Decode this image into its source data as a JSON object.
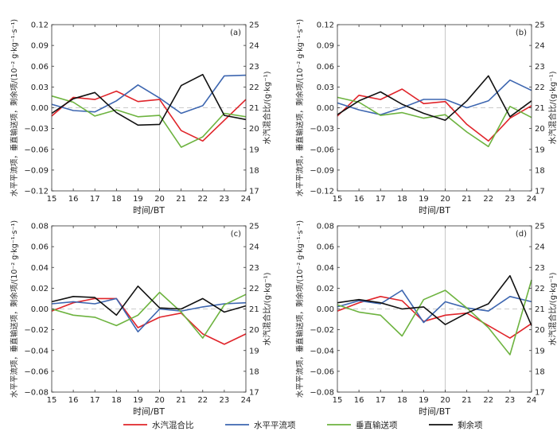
{
  "colors": {
    "mixing": "#e0242a",
    "horizontal": "#3d66b0",
    "vertical": "#6db33f",
    "residual": "#111111"
  },
  "legend": {
    "items": [
      {
        "key": "mixing",
        "label": "水汽混合比"
      },
      {
        "key": "horizontal",
        "label": "水平平流项"
      },
      {
        "key": "vertical",
        "label": "垂直输送项"
      },
      {
        "key": "residual",
        "label": "剩余项"
      }
    ]
  },
  "chart_data": [
    {
      "type": "line",
      "panel_label": "(a)",
      "x": [
        15,
        16,
        17,
        18,
        19,
        20,
        21,
        22,
        23,
        24
      ],
      "xlabel": "时间/BT",
      "ylabel_left": "水平平流项，垂直输送项，剩余项/(10⁻² g·kg⁻¹·s⁻¹)",
      "ylabel_right": "水汽混合比/(g·kg⁻¹)",
      "ylim_left": [
        -0.12,
        0.12
      ],
      "yticks_left": [
        "0.12",
        "0.09",
        "0.06",
        "0.03",
        "0.00",
        "−0.03",
        "−0.06",
        "−0.09",
        "−0.12"
      ],
      "ylim_right": [
        17,
        25
      ],
      "yticks_right": [
        "25",
        "24",
        "23",
        "22",
        "21",
        "20",
        "19",
        "18",
        "17"
      ],
      "series": [
        {
          "key": "mixing",
          "axis": "right",
          "values": [
            20.6,
            21.5,
            21.4,
            21.8,
            21.3,
            21.4,
            19.9,
            19.4,
            20.4,
            21.4
          ]
        },
        {
          "key": "horizontal",
          "axis": "left",
          "values": [
            0.005,
            -0.004,
            -0.006,
            0.01,
            0.033,
            0.014,
            -0.008,
            0.003,
            0.046,
            0.047
          ]
        },
        {
          "key": "vertical",
          "axis": "left",
          "values": [
            0.017,
            0.008,
            -0.012,
            -0.003,
            -0.013,
            -0.011,
            -0.057,
            -0.042,
            -0.008,
            -0.013
          ]
        },
        {
          "key": "residual",
          "axis": "left",
          "values": [
            -0.008,
            0.013,
            0.022,
            -0.007,
            -0.025,
            -0.024,
            0.032,
            0.048,
            -0.011,
            -0.017
          ]
        }
      ],
      "gridline_y": 0,
      "vline_x": 20
    },
    {
      "type": "line",
      "panel_label": "(b)",
      "x": [
        15,
        16,
        17,
        18,
        19,
        20,
        21,
        22,
        23,
        24
      ],
      "xlabel": "时间/BT",
      "ylabel_left": "水平平流项，垂直输送项，剩余项/(10⁻² g·kg⁻¹·s⁻¹)",
      "ylabel_right": "水汽混合比/(g·kg⁻¹)",
      "ylim_left": [
        -0.12,
        0.12
      ],
      "yticks_left": [
        "0.12",
        "0.09",
        "0.06",
        "0.03",
        "0.00",
        "−0.03",
        "−0.06",
        "−0.09",
        "−0.12"
      ],
      "ylim_right": [
        17,
        25
      ],
      "yticks_right": [
        "25",
        "24",
        "23",
        "22",
        "21",
        "20",
        "19",
        "18",
        "17"
      ],
      "series": [
        {
          "key": "mixing",
          "axis": "right",
          "values": [
            20.6,
            21.6,
            21.4,
            21.9,
            21.2,
            21.3,
            20.2,
            19.4,
            20.5,
            21.1
          ]
        },
        {
          "key": "horizontal",
          "axis": "left",
          "values": [
            0.007,
            -0.003,
            -0.01,
            0.0,
            0.012,
            0.012,
            0.0,
            0.01,
            0.04,
            0.025
          ]
        },
        {
          "key": "vertical",
          "axis": "left",
          "values": [
            0.015,
            0.008,
            -0.011,
            -0.007,
            -0.015,
            -0.01,
            -0.035,
            -0.056,
            0.002,
            -0.014
          ]
        },
        {
          "key": "residual",
          "axis": "left",
          "values": [
            -0.01,
            0.01,
            0.023,
            0.005,
            -0.008,
            -0.018,
            0.01,
            0.046,
            -0.013,
            0.01
          ]
        }
      ],
      "gridline_y": 0,
      "vline_x": 20
    },
    {
      "type": "line",
      "panel_label": "(c)",
      "x": [
        15,
        16,
        17,
        18,
        19,
        20,
        21,
        22,
        23,
        24
      ],
      "xlabel": "时间/BT",
      "ylabel_left": "水平平流项，垂直输送项，剩余项/(10⁻² g·kg⁻¹·s⁻¹)",
      "ylabel_right": "水汽混合比/(g·kg⁻¹)",
      "ylim_left": [
        -0.08,
        0.08
      ],
      "yticks_left": [
        "0.08",
        "0.06",
        "0.04",
        "0.02",
        "0.00",
        "−0.02",
        "−0.04",
        "−0.06",
        "−0.08"
      ],
      "ylim_right": [
        17,
        25
      ],
      "yticks_right": [
        "25",
        "24",
        "23",
        "22",
        "21",
        "20",
        "19",
        "18",
        "17"
      ],
      "series": [
        {
          "key": "mixing",
          "axis": "right",
          "values": [
            20.9,
            21.3,
            21.5,
            21.5,
            20.1,
            20.6,
            20.8,
            19.8,
            19.3,
            19.8
          ]
        },
        {
          "key": "horizontal",
          "axis": "left",
          "values": [
            0.005,
            0.007,
            0.005,
            0.01,
            -0.022,
            0.0,
            -0.002,
            0.002,
            0.005,
            0.006
          ]
        },
        {
          "key": "vertical",
          "axis": "left",
          "values": [
            0.0,
            -0.006,
            -0.008,
            -0.016,
            -0.006,
            0.016,
            -0.003,
            -0.028,
            0.004,
            0.014
          ]
        },
        {
          "key": "residual",
          "axis": "left",
          "values": [
            0.007,
            0.012,
            0.011,
            -0.006,
            0.022,
            0.001,
            0.0,
            0.01,
            -0.003,
            0.003
          ]
        }
      ],
      "gridline_y": 0,
      "vline_x": 20
    },
    {
      "type": "line",
      "panel_label": "(d)",
      "x": [
        15,
        16,
        17,
        18,
        19,
        20,
        21,
        22,
        23,
        24
      ],
      "xlabel": "时间/BT",
      "ylabel_left": "水平平流项，垂直输送项，剩余项/(10⁻² g·kg⁻¹·s⁻¹)",
      "ylabel_right": "水汽混合比/(g·kg⁻¹)",
      "ylim_left": [
        -0.08,
        0.08
      ],
      "yticks_left": [
        "0.08",
        "0.06",
        "0.04",
        "0.02",
        "0.00",
        "−0.02",
        "−0.04",
        "−0.06",
        "−0.08"
      ],
      "ylim_right": [
        17,
        25
      ],
      "yticks_right": [
        "25",
        "24",
        "23",
        "22",
        "21",
        "20",
        "19",
        "18",
        "17"
      ],
      "series": [
        {
          "key": "mixing",
          "axis": "right",
          "values": [
            20.9,
            21.3,
            21.6,
            21.4,
            20.4,
            20.7,
            20.8,
            20.2,
            19.6,
            20.3
          ]
        },
        {
          "key": "horizontal",
          "axis": "left",
          "values": [
            0.002,
            0.008,
            0.005,
            0.018,
            -0.013,
            0.007,
            0.001,
            -0.002,
            0.012,
            0.007
          ]
        },
        {
          "key": "vertical",
          "axis": "left",
          "values": [
            0.004,
            -0.003,
            -0.006,
            -0.026,
            0.009,
            0.018,
            0.001,
            -0.018,
            -0.044,
            0.028
          ]
        },
        {
          "key": "residual",
          "axis": "left",
          "values": [
            0.006,
            0.009,
            0.006,
            0.0,
            0.002,
            -0.015,
            -0.004,
            0.005,
            0.032,
            -0.016
          ]
        }
      ],
      "gridline_y": 0,
      "vline_x": 20
    }
  ]
}
